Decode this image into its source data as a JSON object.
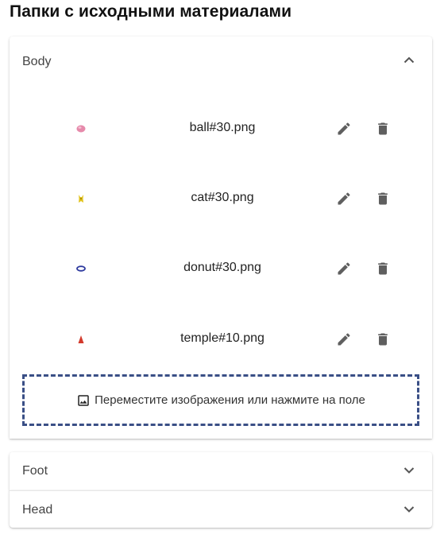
{
  "page": {
    "title": "Папки с исходными материалами"
  },
  "panels": [
    {
      "title": "Body",
      "expanded": true,
      "files": [
        {
          "name": "ball#30.png",
          "thumb": "pink-ball-thumbnail",
          "color": "#e57aa0"
        },
        {
          "name": "cat#30.png",
          "thumb": "yellow-cat-thumbnail",
          "color": "#e0c020"
        },
        {
          "name": "donut#30.png",
          "thumb": "blue-donut-thumbnail",
          "color": "#2e3a9e"
        },
        {
          "name": "temple#10.png",
          "thumb": "red-temple-thumbnail",
          "color": "#d0312d"
        }
      ],
      "dropzone": {
        "label": "Переместите изображения или нажмите на поле",
        "icon": "image-icon"
      }
    },
    {
      "title": "Foot",
      "expanded": false
    },
    {
      "title": "Head",
      "expanded": false
    }
  ],
  "colors": {
    "icon": "#5f5f5f",
    "dropzone_border": "#3a4f86"
  }
}
